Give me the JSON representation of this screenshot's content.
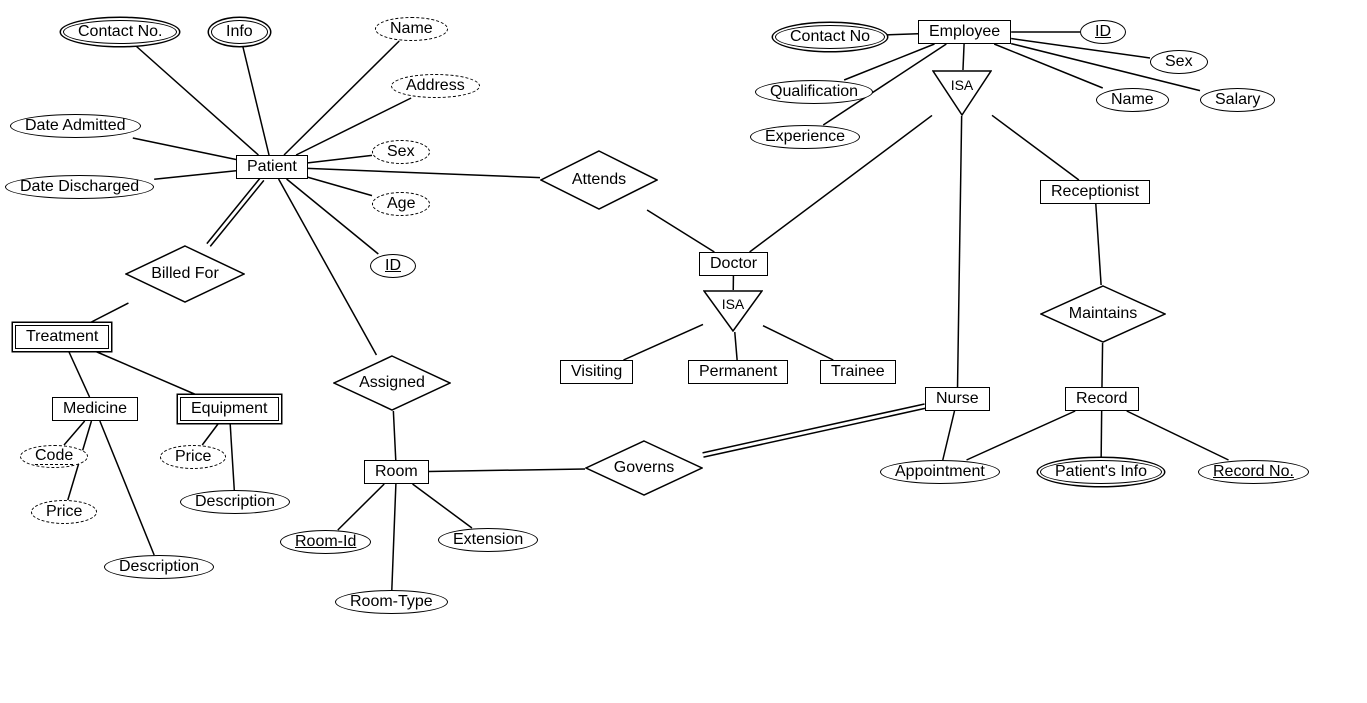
{
  "stroke": "#000000",
  "bg": "#ffffff",
  "font_family": "Segoe UI, Arial, sans-serif",
  "entities": {
    "patient": {
      "label": "Patient",
      "weak": false
    },
    "treatment": {
      "label": "Treatment",
      "weak": true
    },
    "medicine": {
      "label": "Medicine",
      "weak": false
    },
    "equipment": {
      "label": "Equipment",
      "weak": true
    },
    "room": {
      "label": "Room",
      "weak": false
    },
    "doctor": {
      "label": "Doctor",
      "weak": false
    },
    "visiting": {
      "label": "Visiting",
      "weak": false
    },
    "permanent": {
      "label": "Permanent",
      "weak": false
    },
    "trainee": {
      "label": "Trainee",
      "weak": false
    },
    "employee": {
      "label": "Employee",
      "weak": false
    },
    "nurse": {
      "label": "Nurse",
      "weak": false
    },
    "receptionist": {
      "label": "Receptionist",
      "weak": false
    },
    "record": {
      "label": "Record",
      "weak": false
    }
  },
  "relationships": {
    "billed_for": {
      "label": "Billed For"
    },
    "assigned": {
      "label": "Assigned"
    },
    "attends": {
      "label": "Attends"
    },
    "governs": {
      "label": "Governs"
    },
    "maintains": {
      "label": "Maintains"
    }
  },
  "isa": {
    "employee": {
      "label": "ISA"
    },
    "doctor": {
      "label": "ISA"
    }
  },
  "attributes": {
    "patient_contact": {
      "label": "Contact No.",
      "style": "multivalued"
    },
    "patient_info": {
      "label": "Info",
      "style": "multivalued"
    },
    "patient_name": {
      "label": "Name",
      "style": "derived"
    },
    "patient_address": {
      "label": "Address",
      "style": "derived"
    },
    "patient_sex": {
      "label": "Sex",
      "style": "derived"
    },
    "patient_age": {
      "label": "Age",
      "style": "derived"
    },
    "patient_id": {
      "label": "ID",
      "style": "key"
    },
    "patient_date_admitted": {
      "label": "Date Admitted",
      "style": "plain"
    },
    "patient_date_discharged": {
      "label": "Date Discharged",
      "style": "plain"
    },
    "medicine_code": {
      "label": "Code",
      "style": "derived"
    },
    "medicine_price": {
      "label": "Price",
      "style": "derived"
    },
    "medicine_description": {
      "label": "Description",
      "style": "plain"
    },
    "equipment_price": {
      "label": "Price",
      "style": "derived"
    },
    "equipment_description": {
      "label": "Description",
      "style": "plain"
    },
    "room_id": {
      "label": "Room-Id",
      "style": "key"
    },
    "room_type": {
      "label": "Room-Type",
      "style": "plain"
    },
    "room_extension": {
      "label": "Extension",
      "style": "plain"
    },
    "employee_contact": {
      "label": "Contact No",
      "style": "multivalued"
    },
    "employee_qualification": {
      "label": "Qualification",
      "style": "plain"
    },
    "employee_experience": {
      "label": "Experience",
      "style": "plain"
    },
    "employee_id": {
      "label": "ID",
      "style": "key"
    },
    "employee_sex": {
      "label": "Sex",
      "style": "plain"
    },
    "employee_name": {
      "label": "Name",
      "style": "plain"
    },
    "employee_salary": {
      "label": "Salary",
      "style": "plain"
    },
    "nurse_appointment": {
      "label": "Appointment",
      "style": "plain"
    },
    "record_patients_info": {
      "label": "Patient's Info",
      "style": "multivalued"
    },
    "record_no": {
      "label": "Record No.",
      "style": "key"
    }
  },
  "edges": [
    [
      "patient",
      "patient_contact",
      "single"
    ],
    [
      "patient",
      "patient_info",
      "single"
    ],
    [
      "patient",
      "patient_name",
      "single"
    ],
    [
      "patient",
      "patient_address",
      "single"
    ],
    [
      "patient",
      "patient_sex",
      "single"
    ],
    [
      "patient",
      "patient_age",
      "single"
    ],
    [
      "patient",
      "patient_id",
      "single"
    ],
    [
      "patient",
      "patient_date_admitted",
      "single"
    ],
    [
      "patient",
      "patient_date_discharged",
      "single"
    ],
    [
      "patient",
      "billed_for",
      "double"
    ],
    [
      "patient",
      "assigned",
      "single"
    ],
    [
      "patient",
      "attends",
      "single"
    ],
    [
      "billed_for",
      "treatment",
      "single"
    ],
    [
      "treatment",
      "medicine",
      "single"
    ],
    [
      "treatment",
      "equipment",
      "single"
    ],
    [
      "medicine",
      "medicine_code",
      "single"
    ],
    [
      "medicine",
      "medicine_price",
      "single"
    ],
    [
      "medicine",
      "medicine_description",
      "single"
    ],
    [
      "equipment",
      "equipment_price",
      "single"
    ],
    [
      "equipment",
      "equipment_description",
      "single"
    ],
    [
      "assigned",
      "room",
      "single"
    ],
    [
      "room",
      "room_id",
      "single"
    ],
    [
      "room",
      "room_type",
      "single"
    ],
    [
      "room",
      "room_extension",
      "single"
    ],
    [
      "room",
      "governs",
      "single"
    ],
    [
      "governs",
      "nurse",
      "double"
    ],
    [
      "attends",
      "doctor",
      "single"
    ],
    [
      "doctor",
      "isa_doctor",
      "single"
    ],
    [
      "isa_doctor",
      "visiting",
      "single"
    ],
    [
      "isa_doctor",
      "permanent",
      "single"
    ],
    [
      "isa_doctor",
      "trainee",
      "single"
    ],
    [
      "employee",
      "employee_contact",
      "single"
    ],
    [
      "employee",
      "employee_qualification",
      "single"
    ],
    [
      "employee",
      "employee_experience",
      "single"
    ],
    [
      "employee",
      "employee_id",
      "single"
    ],
    [
      "employee",
      "employee_sex",
      "single"
    ],
    [
      "employee",
      "employee_name",
      "single"
    ],
    [
      "employee",
      "employee_salary",
      "single"
    ],
    [
      "employee",
      "isa_employee",
      "single"
    ],
    [
      "isa_employee",
      "doctor",
      "single"
    ],
    [
      "isa_employee",
      "nurse",
      "single"
    ],
    [
      "isa_employee",
      "receptionist",
      "single"
    ],
    [
      "nurse",
      "nurse_appointment",
      "single"
    ],
    [
      "receptionist",
      "maintains",
      "single"
    ],
    [
      "maintains",
      "record",
      "single"
    ],
    [
      "record",
      "record_patients_info",
      "single"
    ],
    [
      "record",
      "record_no",
      "single"
    ],
    [
      "record",
      "nurse_appointment",
      "single"
    ]
  ]
}
